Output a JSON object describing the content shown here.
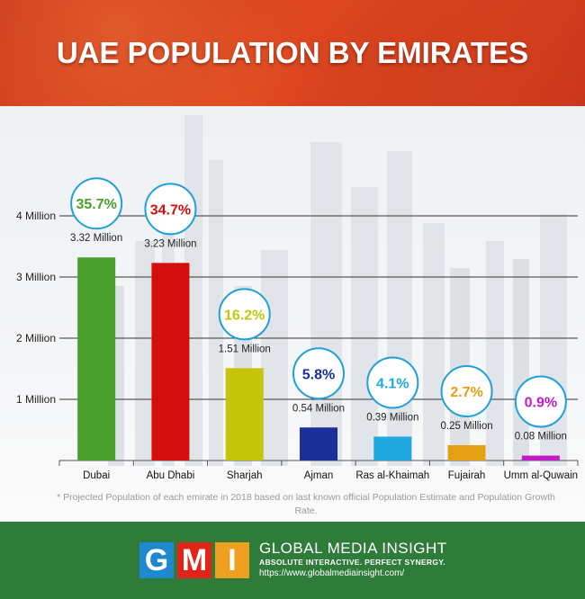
{
  "header": {
    "title": "UAE POPULATION BY EMIRATES"
  },
  "chart_data": {
    "type": "bar",
    "title": "UAE POPULATION BY EMIRATES",
    "categories": [
      "Dubai",
      "Abu Dhabi",
      "Sharjah",
      "Ajman",
      "Ras al-Khaimah",
      "Fujairah",
      "Umm al-Quwain"
    ],
    "values": [
      3.32,
      3.23,
      1.51,
      0.54,
      0.39,
      0.25,
      0.08
    ],
    "value_labels": [
      "3.32 Million",
      "3.23 Million",
      "1.51 Million",
      "0.54 Million",
      "0.39 Million",
      "0.25 Million",
      "0.08 Million"
    ],
    "percent_labels": [
      "35.7%",
      "34.7%",
      "16.2%",
      "5.8%",
      "4.1%",
      "2.7%",
      "0.9%"
    ],
    "colors": [
      "#4aa02c",
      "#d40d0d",
      "#c4c50b",
      "#1a2f9a",
      "#1fa9e1",
      "#e4a012",
      "#c21cc7"
    ],
    "y_ticks": [
      "1 Million",
      "2 Million",
      "3 Million",
      "4 Million"
    ],
    "y_tick_values": [
      1,
      2,
      3,
      4
    ],
    "ylim": [
      0,
      4
    ],
    "grid": true
  },
  "footnote": "* Projected Population of each emirate in 2018 based on last known official Population Estimate and Population Growth Rate.",
  "footer": {
    "logo_letters": [
      "G",
      "M",
      "I"
    ],
    "logo_colors": [
      "#1e88d0",
      "#e2231a",
      "#f0a020"
    ],
    "brand": "GLOBAL MEDIA INSIGHT",
    "tagline": "ABSOLUTE INTERACTIVE. PERFECT SYNERGY.",
    "url": "https://www.globalmediainsight.com/"
  }
}
